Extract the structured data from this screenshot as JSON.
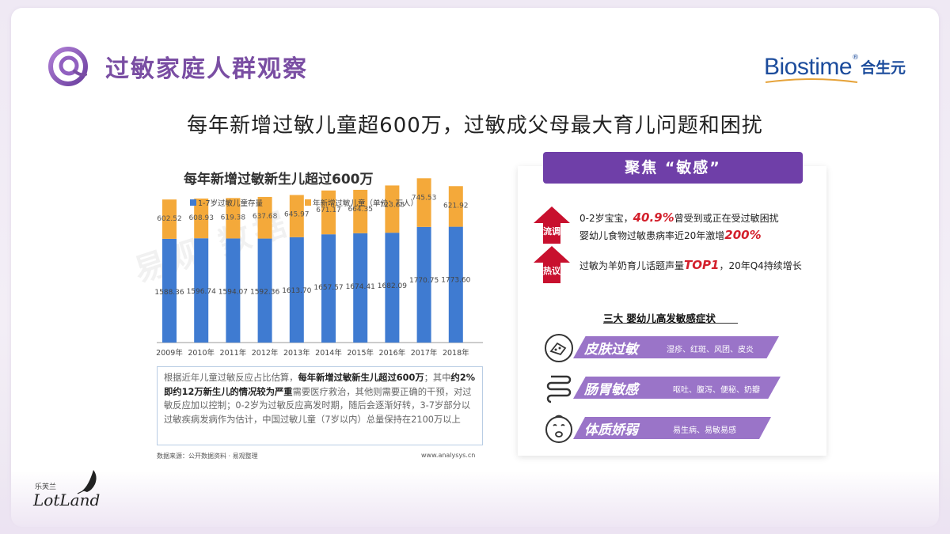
{
  "header": {
    "title": "过敏家庭人群观察",
    "brand_en": "Biostime",
    "brand_cn": "合生元",
    "reg_mark": "®"
  },
  "headline": "每年新增过敏儿童超600万，过敏成父母最大育儿问题和困扰",
  "chart_data": {
    "type": "bar",
    "stacked": true,
    "title": "每年新增过敏新生儿超过600万",
    "categories": [
      "2009年",
      "2010年",
      "2011年",
      "2012年",
      "2013年",
      "2014年",
      "2015年",
      "2016年",
      "2017年",
      "2018年"
    ],
    "series": [
      {
        "name": "1-7岁过敏儿童存量",
        "color": "#3f7bd1",
        "values": [
          1588.36,
          1596.74,
          1594.07,
          1592.36,
          1613.7,
          1657.57,
          1674.41,
          1682.09,
          1770.75,
          1773.6
        ],
        "labels": [
          "1588.36",
          "1596.74",
          "1594.07",
          "1592.36",
          "1613.70",
          "1657.57",
          "1674.41",
          "1682.09",
          "1770.75",
          "1773.60"
        ]
      },
      {
        "name": "年新增过敏儿童（单位：万人）",
        "color": "#f4a93a",
        "values": [
          602.52,
          608.93,
          619.38,
          637.68,
          645.97,
          671.17,
          664.35,
          723.68,
          745.53,
          621.92
        ],
        "labels": [
          "602.52",
          "608.93",
          "619.38",
          "637.68",
          "645.97",
          "671.17",
          "664.35",
          "723.68",
          "745.53",
          "621.92"
        ]
      }
    ],
    "legend": "top",
    "grid": false
  },
  "watermark": "易观 数据",
  "note": {
    "p1": "根据近年儿童过敏反应占比估算，",
    "b1": "每年新增过敏新生儿超过600万",
    "p2": "；其中",
    "b2": "约2%即约12万新生儿的情况较为严重",
    "p3": "需要医疗救治，其他则需要正确的干预，对过敏反应加以控制；0-2岁为过敏反应高发时期，随后会逐渐好转，3-7岁部分以过敏疾病发病作为估计，中国过敏儿童（7岁以内）总量保持在2100万以上"
  },
  "source_left": "数据来源：公开数据资料 · 易观整理",
  "source_right": "www.analysys.cn",
  "panel": {
    "header": "聚焦 “敏感”",
    "tag1": "流调",
    "tag2": "热议",
    "line1_a": "0-2岁宝宝，",
    "line1_b": "40.9%",
    "line1_c": "曾受到或正在受过敏困扰",
    "line2_a": "婴幼儿食物过敏患病率近20年激增",
    "line2_b": "200%",
    "line3_a": "过敏为羊奶育儿话题声量",
    "line3_b": "TOP1",
    "line3_c": "，20年Q4持续增长",
    "symptoms_title": "三大  婴幼儿高发敏感症状",
    "symptoms": [
      {
        "name": "皮肤过敏",
        "desc": "湿疹、红斑、风团、皮炎",
        "icon": "skin-icon"
      },
      {
        "name": "肠胃敏感",
        "desc": "呕吐、腹泻、便秘、奶瓣",
        "icon": "intestine-icon"
      },
      {
        "name": "体质娇弱",
        "desc": "易生病、易敏易感",
        "icon": "crying-baby-icon"
      }
    ]
  },
  "footer": {
    "lotland_cn": "乐芙兰",
    "lotland_en": "LotLand"
  }
}
